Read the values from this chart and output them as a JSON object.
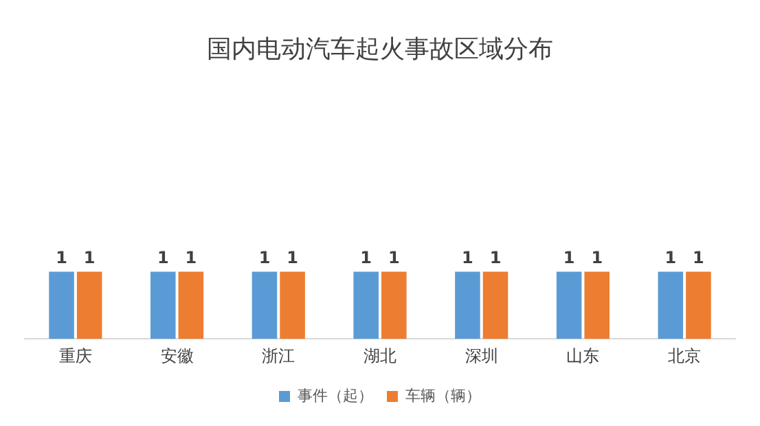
{
  "chart_data": {
    "type": "bar",
    "title": "国内电动汽车起火事故区域分布",
    "categories": [
      "重庆",
      "安徽",
      "浙江",
      "湖北",
      "深圳",
      "山东",
      "北京"
    ],
    "series": [
      {
        "name": "事件（起）",
        "color": "#5b9bd5",
        "values": [
          1,
          1,
          1,
          1,
          1,
          1,
          1
        ]
      },
      {
        "name": "车辆（辆）",
        "color": "#ed7d31",
        "values": [
          1,
          1,
          1,
          1,
          1,
          1,
          1
        ]
      }
    ],
    "tick_labels": "x",
    "data_labels": true,
    "legend": "bottom",
    "grid": false
  }
}
